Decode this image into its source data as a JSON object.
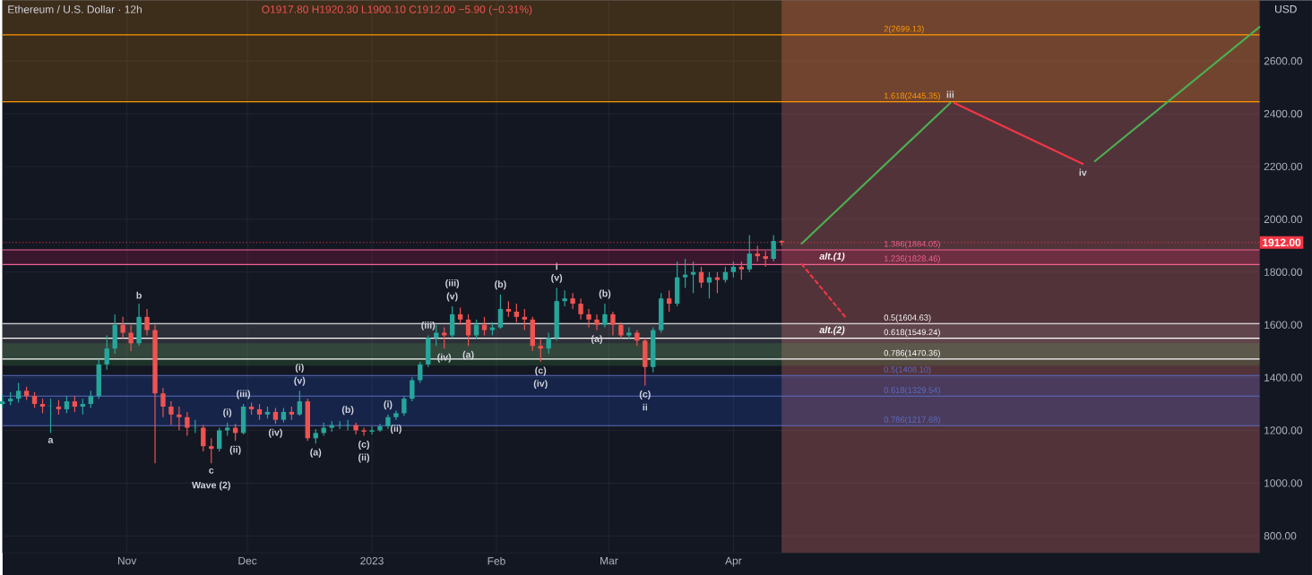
{
  "chart_data": {
    "type": "candlestick",
    "title": "Ethereum / U.S. Dollar · 12h",
    "subtitle": "O1917.80 H1920.30 L1900.10 C1912.00 −5.90 (−0.31%)",
    "ylabel": "USD",
    "x": [
      "2022-10-01",
      "2022-10-03",
      "2022-10-05",
      "2022-10-07",
      "2022-10-09",
      "2022-10-11",
      "2022-10-13",
      "2022-10-15",
      "2022-10-17",
      "2022-10-19",
      "2022-10-21",
      "2022-10-23",
      "2022-10-25",
      "2022-10-27",
      "2022-10-29",
      "2022-10-31",
      "2022-11-02",
      "2022-11-04",
      "2022-11-06",
      "2022-11-08",
      "2022-11-10",
      "2022-11-12",
      "2022-11-14",
      "2022-11-16",
      "2022-11-18",
      "2022-11-20",
      "2022-11-22",
      "2022-11-24",
      "2022-11-26",
      "2022-11-28",
      "2022-11-30",
      "2022-12-02",
      "2022-12-04",
      "2022-12-06",
      "2022-12-08",
      "2022-12-10",
      "2022-12-12",
      "2022-12-14",
      "2022-12-16",
      "2022-12-18",
      "2022-12-20",
      "2022-12-22",
      "2022-12-24",
      "2022-12-26",
      "2022-12-28",
      "2022-12-30",
      "2023-01-01",
      "2023-01-03",
      "2023-01-05",
      "2023-01-07",
      "2023-01-09",
      "2023-01-11",
      "2023-01-13",
      "2023-01-15",
      "2023-01-17",
      "2023-01-19",
      "2023-01-21",
      "2023-01-23",
      "2023-01-25",
      "2023-01-27",
      "2023-01-29",
      "2023-01-31",
      "2023-02-02",
      "2023-02-04",
      "2023-02-06",
      "2023-02-08",
      "2023-02-10",
      "2023-02-12",
      "2023-02-14",
      "2023-02-16",
      "2023-02-18",
      "2023-02-20",
      "2023-02-22",
      "2023-02-24",
      "2023-02-26",
      "2023-02-28",
      "2023-03-02",
      "2023-03-04",
      "2023-03-06",
      "2023-03-08",
      "2023-03-10",
      "2023-03-12",
      "2023-03-14",
      "2023-03-16",
      "2023-03-18",
      "2023-03-20",
      "2023-03-22",
      "2023-03-24",
      "2023-03-26",
      "2023-03-28",
      "2023-03-30",
      "2023-04-01",
      "2023-04-03",
      "2023-04-05",
      "2023-04-07",
      "2023-04-09",
      "2023-04-11",
      "2023-04-13"
    ],
    "ohlc": [
      [
        1300,
        1335,
        1285,
        1310
      ],
      [
        1310,
        1345,
        1295,
        1320
      ],
      [
        1320,
        1380,
        1305,
        1350
      ],
      [
        1350,
        1365,
        1315,
        1330
      ],
      [
        1330,
        1345,
        1285,
        1300
      ],
      [
        1300,
        1320,
        1265,
        1290
      ],
      [
        1290,
        1320,
        1190,
        1290
      ],
      [
        1290,
        1315,
        1260,
        1280
      ],
      [
        1280,
        1330,
        1265,
        1310
      ],
      [
        1310,
        1330,
        1270,
        1290
      ],
      [
        1290,
        1320,
        1260,
        1300
      ],
      [
        1300,
        1350,
        1285,
        1330
      ],
      [
        1330,
        1470,
        1320,
        1450
      ],
      [
        1450,
        1560,
        1430,
        1510
      ],
      [
        1510,
        1640,
        1490,
        1600
      ],
      [
        1600,
        1630,
        1550,
        1570
      ],
      [
        1570,
        1600,
        1500,
        1530
      ],
      [
        1530,
        1680,
        1520,
        1630
      ],
      [
        1630,
        1660,
        1560,
        1580
      ],
      [
        1580,
        1600,
        1075,
        1340
      ],
      [
        1340,
        1360,
        1250,
        1290
      ],
      [
        1290,
        1310,
        1220,
        1260
      ],
      [
        1260,
        1290,
        1200,
        1250
      ],
      [
        1250,
        1270,
        1180,
        1210
      ],
      [
        1210,
        1240,
        1190,
        1210
      ],
      [
        1210,
        1220,
        1120,
        1140
      ],
      [
        1140,
        1170,
        1075,
        1130
      ],
      [
        1130,
        1210,
        1120,
        1200
      ],
      [
        1200,
        1230,
        1180,
        1210
      ],
      [
        1210,
        1225,
        1160,
        1190
      ],
      [
        1190,
        1300,
        1185,
        1290
      ],
      [
        1290,
        1305,
        1260,
        1280
      ],
      [
        1280,
        1300,
        1240,
        1260
      ],
      [
        1260,
        1290,
        1245,
        1270
      ],
      [
        1270,
        1285,
        1225,
        1240
      ],
      [
        1240,
        1285,
        1230,
        1270
      ],
      [
        1270,
        1290,
        1240,
        1260
      ],
      [
        1260,
        1350,
        1255,
        1310
      ],
      [
        1310,
        1320,
        1160,
        1170
      ],
      [
        1170,
        1205,
        1150,
        1190
      ],
      [
        1190,
        1230,
        1180,
        1210
      ],
      [
        1210,
        1235,
        1195,
        1220
      ],
      [
        1220,
        1235,
        1205,
        1220
      ],
      [
        1220,
        1240,
        1200,
        1220
      ],
      [
        1220,
        1230,
        1185,
        1200
      ],
      [
        1200,
        1210,
        1180,
        1195
      ],
      [
        1195,
        1215,
        1185,
        1200
      ],
      [
        1200,
        1225,
        1195,
        1215
      ],
      [
        1215,
        1260,
        1205,
        1250
      ],
      [
        1250,
        1275,
        1240,
        1265
      ],
      [
        1265,
        1330,
        1255,
        1320
      ],
      [
        1320,
        1400,
        1310,
        1390
      ],
      [
        1390,
        1460,
        1380,
        1450
      ],
      [
        1450,
        1560,
        1440,
        1550
      ],
      [
        1550,
        1600,
        1520,
        1570
      ],
      [
        1570,
        1590,
        1510,
        1560
      ],
      [
        1560,
        1670,
        1550,
        1640
      ],
      [
        1640,
        1665,
        1600,
        1620
      ],
      [
        1620,
        1640,
        1520,
        1560
      ],
      [
        1560,
        1620,
        1545,
        1600
      ],
      [
        1600,
        1630,
        1560,
        1580
      ],
      [
        1580,
        1610,
        1560,
        1590
      ],
      [
        1590,
        1715,
        1585,
        1660
      ],
      [
        1660,
        1690,
        1630,
        1650
      ],
      [
        1650,
        1680,
        1610,
        1630
      ],
      [
        1630,
        1660,
        1580,
        1620
      ],
      [
        1620,
        1630,
        1500,
        1520
      ],
      [
        1520,
        1545,
        1460,
        1510
      ],
      [
        1510,
        1570,
        1490,
        1550
      ],
      [
        1550,
        1740,
        1540,
        1690
      ],
      [
        1690,
        1730,
        1670,
        1700
      ],
      [
        1700,
        1720,
        1660,
        1680
      ],
      [
        1680,
        1700,
        1620,
        1640
      ],
      [
        1640,
        1660,
        1590,
        1620
      ],
      [
        1620,
        1640,
        1580,
        1600
      ],
      [
        1600,
        1680,
        1590,
        1640
      ],
      [
        1640,
        1650,
        1560,
        1600
      ],
      [
        1600,
        1610,
        1550,
        1560
      ],
      [
        1560,
        1590,
        1545,
        1570
      ],
      [
        1570,
        1580,
        1520,
        1540
      ],
      [
        1540,
        1550,
        1370,
        1440
      ],
      [
        1440,
        1590,
        1420,
        1580
      ],
      [
        1580,
        1720,
        1570,
        1700
      ],
      [
        1700,
        1730,
        1650,
        1680
      ],
      [
        1680,
        1840,
        1670,
        1780
      ],
      [
        1780,
        1850,
        1740,
        1790
      ],
      [
        1790,
        1840,
        1720,
        1800
      ],
      [
        1800,
        1820,
        1740,
        1760
      ],
      [
        1760,
        1800,
        1700,
        1780
      ],
      [
        1780,
        1800,
        1720,
        1770
      ],
      [
        1770,
        1820,
        1760,
        1800
      ],
      [
        1800,
        1840,
        1780,
        1820
      ],
      [
        1820,
        1840,
        1770,
        1810
      ],
      [
        1810,
        1940,
        1800,
        1870
      ],
      [
        1870,
        1900,
        1840,
        1860
      ],
      [
        1860,
        1880,
        1820,
        1850
      ],
      [
        1850,
        1940,
        1840,
        1917.8
      ],
      [
        1917.8,
        1920.3,
        1900.1,
        1912.0
      ]
    ],
    "series": [
      {
        "type": "line",
        "color": "#4caf50",
        "x": [
          "2023-04-18",
          "2023-05-25"
        ],
        "values": [
          1908,
          2441
        ]
      },
      {
        "type": "line",
        "color": "#f23645",
        "x": [
          "2023-05-26",
          "2023-06-27"
        ],
        "values": [
          2441,
          2210
        ]
      },
      {
        "type": "line",
        "color": "#4caf50",
        "x": [
          "2023-06-30",
          "2023-08-10"
        ],
        "values": [
          2220,
          2729
        ]
      },
      {
        "type": "line",
        "color": "#f23645",
        "line_style": "dashed",
        "x": [
          "2023-04-18",
          "2023-04-29"
        ],
        "values": [
          1830,
          1627
        ]
      }
    ],
    "xlim": [
      "2022-10-01",
      "2023-08-10"
    ],
    "xticks": [
      {
        "value": "2022-11-01",
        "label": "Nov"
      },
      {
        "value": "2022-12-01",
        "label": "Dec"
      },
      {
        "value": "2023-01-01",
        "label": "2023"
      },
      {
        "value": "2023-02-01",
        "label": "Feb"
      },
      {
        "value": "2023-03-01",
        "label": "Mar"
      },
      {
        "value": "2023-04-01",
        "label": "Apr"
      }
    ],
    "ylim": [
      736,
      2830
    ],
    "yticks": [
      {
        "value": 800,
        "label": "800.00"
      },
      {
        "value": 1000,
        "label": "1000.00"
      },
      {
        "value": 1200,
        "label": "1200.00"
      },
      {
        "value": 1400,
        "label": "1400.00"
      },
      {
        "value": 1600,
        "label": "1600.00"
      },
      {
        "value": 1800,
        "label": "1800.00"
      },
      {
        "value": 2000,
        "label": "2000.00"
      },
      {
        "value": 2200,
        "label": "2200.00"
      },
      {
        "value": 2400,
        "label": "2400.00"
      },
      {
        "value": 2600,
        "label": "2600.00"
      }
    ],
    "grid": true,
    "ref_lines": [
      {
        "axis": "y",
        "value": 1912,
        "label": "1912.00",
        "color": "#f23645",
        "line_style": "dotted"
      },
      {
        "axis": "y",
        "value": 2699.13,
        "label": "2(2699.13)",
        "color": "#ff9800"
      },
      {
        "axis": "y",
        "value": 2445.35,
        "label": "1.618(2445.35)",
        "color": "#ff9800"
      },
      {
        "axis": "y",
        "value": 1884.05,
        "label": "1.386(1884.05)",
        "color": "#f06292"
      },
      {
        "axis": "y",
        "value": 1828.46,
        "label": "1.236(1828.46)",
        "color": "#f06292"
      },
      {
        "axis": "y",
        "value": 1604.63,
        "label": "0.5(1604.63)",
        "color": "#ffffff"
      },
      {
        "axis": "y",
        "value": 1549.24,
        "label": "0.618(1549.24)",
        "color": "#ffffff"
      },
      {
        "axis": "y",
        "value": 1470.36,
        "label": "0.786(1470.36)",
        "color": "#ffffff"
      },
      {
        "axis": "y",
        "value": 1408.1,
        "label": "0.5(1408.10)",
        "color": "#5c6bc0"
      },
      {
        "axis": "y",
        "value": 1329.54,
        "label": "0.618(1329.54)",
        "color": "#5c6bc0"
      },
      {
        "axis": "y",
        "value": 1217.68,
        "label": "0.786(1217.68)",
        "color": "#5c6bc0"
      }
    ],
    "bands": [
      {
        "axis": "x",
        "from": "2023-04-13",
        "to": "2023-08-10",
        "color": "#e57373"
      },
      {
        "axis": "y",
        "from": 2445.35,
        "to": 2830,
        "color": "#ff9800"
      },
      {
        "axis": "y",
        "from": 1828.46,
        "to": 1884.05,
        "label": "alt.(1)",
        "color": "#e91e63"
      },
      {
        "axis": "y",
        "from": 1470.36,
        "to": 1604.63,
        "label": "alt.(2)",
        "color": "#9e9e9e"
      },
      {
        "axis": "y",
        "from": 1445,
        "to": 1530,
        "color": "#4caf50"
      },
      {
        "axis": "y",
        "from": 1217.68,
        "to": 1408.1,
        "color": "#2962ff"
      }
    ],
    "annotations": [
      {
        "text": "a",
        "x": "2022-10-13",
        "y": 1190
      },
      {
        "text": "b",
        "x": "2022-11-04",
        "y": 1680
      },
      {
        "text": "c",
        "x": "2022-11-22",
        "y": 1075
      },
      {
        "text": "Wave (2)",
        "x": "2022-11-22",
        "y": 1075
      },
      {
        "text": "(i)",
        "x": "2022-11-26",
        "y": 1230
      },
      {
        "text": "(ii)",
        "x": "2022-11-28",
        "y": 1160
      },
      {
        "text": "(iii)",
        "x": "2022-11-30",
        "y": 1300
      },
      {
        "text": "(iv)",
        "x": "2022-12-08",
        "y": 1225
      },
      {
        "text": "(v)",
        "x": "2022-12-14",
        "y": 1350
      },
      {
        "text": "(i)",
        "x": "2022-12-14",
        "y": 1350
      },
      {
        "text": "(a)",
        "x": "2022-12-18",
        "y": 1150
      },
      {
        "text": "(b)",
        "x": "2022-12-26",
        "y": 1240
      },
      {
        "text": "(c)",
        "x": "2022-12-30",
        "y": 1180
      },
      {
        "text": "(ii)",
        "x": "2022-12-30",
        "y": 1180
      },
      {
        "text": "(i)",
        "x": "2023-01-05",
        "y": 1260
      },
      {
        "text": "(ii)",
        "x": "2023-01-07",
        "y": 1240
      },
      {
        "text": "(iii)",
        "x": "2023-01-15",
        "y": 1560
      },
      {
        "text": "(iv)",
        "x": "2023-01-19",
        "y": 1510
      },
      {
        "text": "(v)",
        "x": "2023-01-21",
        "y": 1670
      },
      {
        "text": "(iii)",
        "x": "2023-01-21",
        "y": 1670
      },
      {
        "text": "(a)",
        "x": "2023-01-25",
        "y": 1520
      },
      {
        "text": "(b)",
        "x": "2023-02-02",
        "y": 1715
      },
      {
        "text": "(c)",
        "x": "2023-02-12",
        "y": 1460
      },
      {
        "text": "(iv)",
        "x": "2023-02-12",
        "y": 1460
      },
      {
        "text": "(v)",
        "x": "2023-02-16",
        "y": 1740
      },
      {
        "text": "i",
        "x": "2023-02-16",
        "y": 1740
      },
      {
        "text": "(a)",
        "x": "2023-02-26",
        "y": 1580
      },
      {
        "text": "(b)",
        "x": "2023-02-28",
        "y": 1680
      },
      {
        "text": "(c)",
        "x": "2023-03-10",
        "y": 1370
      },
      {
        "text": "ii",
        "x": "2023-03-10",
        "y": 1370
      },
      {
        "text": "iii",
        "x": "2023-05-25",
        "y": 2441
      },
      {
        "text": "iv",
        "x": "2023-06-27",
        "y": 2210
      }
    ]
  }
}
